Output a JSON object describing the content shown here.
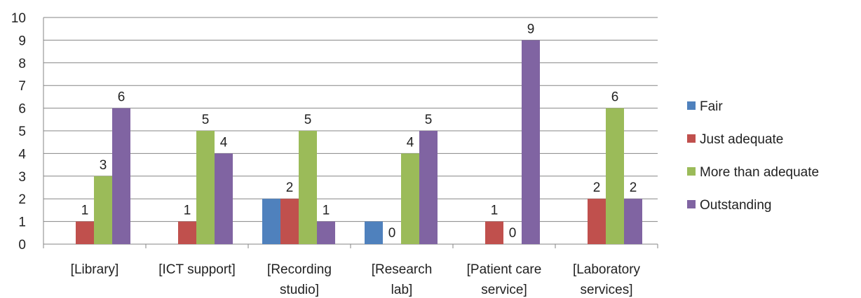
{
  "chart_data": {
    "type": "bar",
    "categories": [
      [
        "[Library]"
      ],
      [
        "[ICT support]"
      ],
      [
        "[Recording",
        "studio]"
      ],
      [
        "[Research",
        "lab]"
      ],
      [
        "[Patient care",
        "service]"
      ],
      [
        "[Laboratory",
        "services]"
      ]
    ],
    "series": [
      {
        "name": "Fair",
        "color": "#4F81BD",
        "values": [
          null,
          null,
          2,
          1,
          null,
          null
        ],
        "labels": [
          null,
          null,
          null,
          null,
          null,
          null
        ]
      },
      {
        "name": "Just adequate",
        "color": "#C0504D",
        "values": [
          1,
          1,
          2,
          0,
          1,
          2
        ],
        "labels": [
          1,
          1,
          2,
          0,
          1,
          2
        ]
      },
      {
        "name": "More than adequate",
        "color": "#9BBB59",
        "values": [
          3,
          5,
          5,
          4,
          0,
          6
        ],
        "labels": [
          3,
          5,
          5,
          4,
          0,
          6
        ]
      },
      {
        "name": "Outstanding",
        "color": "#8064A2",
        "values": [
          6,
          4,
          1,
          5,
          9,
          2
        ],
        "labels": [
          6,
          4,
          1,
          5,
          9,
          2
        ]
      }
    ],
    "y_ticks": [
      0,
      1,
      2,
      3,
      4,
      5,
      6,
      7,
      8,
      9,
      10
    ],
    "ylim": [
      0,
      10
    ],
    "grid": true,
    "legend_position": "right",
    "title": "",
    "xlabel": "",
    "ylabel": ""
  }
}
